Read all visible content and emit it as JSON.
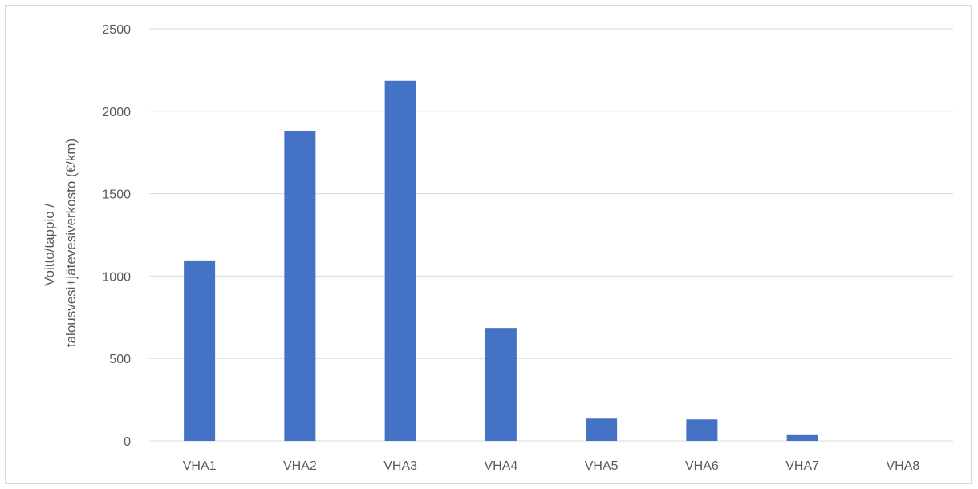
{
  "chart_data": {
    "type": "bar",
    "title": "",
    "xlabel": "",
    "ylabel_lines": [
      "Voitto/tappio /",
      "talousvesi+jätevesiverkosto (€/km)"
    ],
    "categories": [
      "VHA1",
      "VHA2",
      "VHA3",
      "VHA4",
      "VHA5",
      "VHA6",
      "VHA7",
      "VHA8"
    ],
    "values": [
      1095,
      1880,
      2185,
      685,
      135,
      130,
      35,
      0
    ],
    "ylim": [
      0,
      2500
    ],
    "yticks": [
      0,
      500,
      1000,
      1500,
      2000,
      2500
    ],
    "grid": true,
    "legend": "none",
    "colors": {
      "bar": "#4472c4",
      "grid": "#d9d9d9",
      "axis_text": "#595959"
    }
  }
}
